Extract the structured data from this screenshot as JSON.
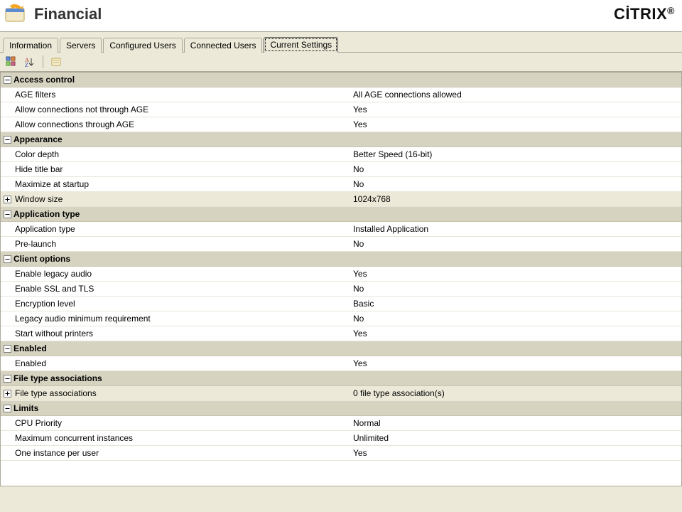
{
  "app": {
    "title": "Financial",
    "brand": "CİTRIX",
    "brand_suffix": "®"
  },
  "tabs": [
    {
      "label": "Information",
      "active": false
    },
    {
      "label": "Servers",
      "active": false
    },
    {
      "label": "Configured Users",
      "active": false
    },
    {
      "label": "Connected Users",
      "active": false
    },
    {
      "label": "Current Settings",
      "active": true
    }
  ],
  "sections": [
    {
      "title": "Access control",
      "expanded": true,
      "rows": [
        {
          "label": "AGE filters",
          "value": "All AGE connections allowed"
        },
        {
          "label": "Allow connections not through AGE",
          "value": "Yes"
        },
        {
          "label": "Allow connections through AGE",
          "value": "Yes"
        }
      ]
    },
    {
      "title": "Appearance",
      "expanded": true,
      "rows": [
        {
          "label": "Color depth",
          "value": "Better Speed (16-bit)"
        },
        {
          "label": "Hide title bar",
          "value": "No"
        },
        {
          "label": "Maximize at startup",
          "value": "No"
        },
        {
          "label": "Window size",
          "value": "1024x768",
          "expandable": true,
          "expanded": false
        }
      ]
    },
    {
      "title": "Application type",
      "expanded": true,
      "rows": [
        {
          "label": "Application type",
          "value": "Installed Application"
        },
        {
          "label": "Pre-launch",
          "value": "No"
        }
      ]
    },
    {
      "title": "Client options",
      "expanded": true,
      "rows": [
        {
          "label": "Enable legacy audio",
          "value": "Yes"
        },
        {
          "label": "Enable SSL and TLS",
          "value": "No"
        },
        {
          "label": "Encryption level",
          "value": "Basic"
        },
        {
          "label": "Legacy audio minimum requirement",
          "value": "No"
        },
        {
          "label": "Start without printers",
          "value": "Yes"
        }
      ]
    },
    {
      "title": "Enabled",
      "expanded": true,
      "rows": [
        {
          "label": "Enabled",
          "value": "Yes"
        }
      ]
    },
    {
      "title": "File type associations",
      "expanded": true,
      "rows": [
        {
          "label": "File type associations",
          "value": "0 file type association(s)",
          "expandable": true,
          "expanded": false
        }
      ]
    },
    {
      "title": "Limits",
      "expanded": true,
      "rows": [
        {
          "label": "CPU Priority",
          "value": "Normal"
        },
        {
          "label": "Maximum concurrent instances",
          "value": "Unlimited"
        },
        {
          "label": "One instance per user",
          "value": "Yes"
        }
      ]
    }
  ],
  "colors": {
    "panel_bg": "#ece9d8",
    "section_hdr_bg": "#d6d3c1",
    "border": "#aca899",
    "row_border": "#e8e6da",
    "white": "#ffffff"
  }
}
